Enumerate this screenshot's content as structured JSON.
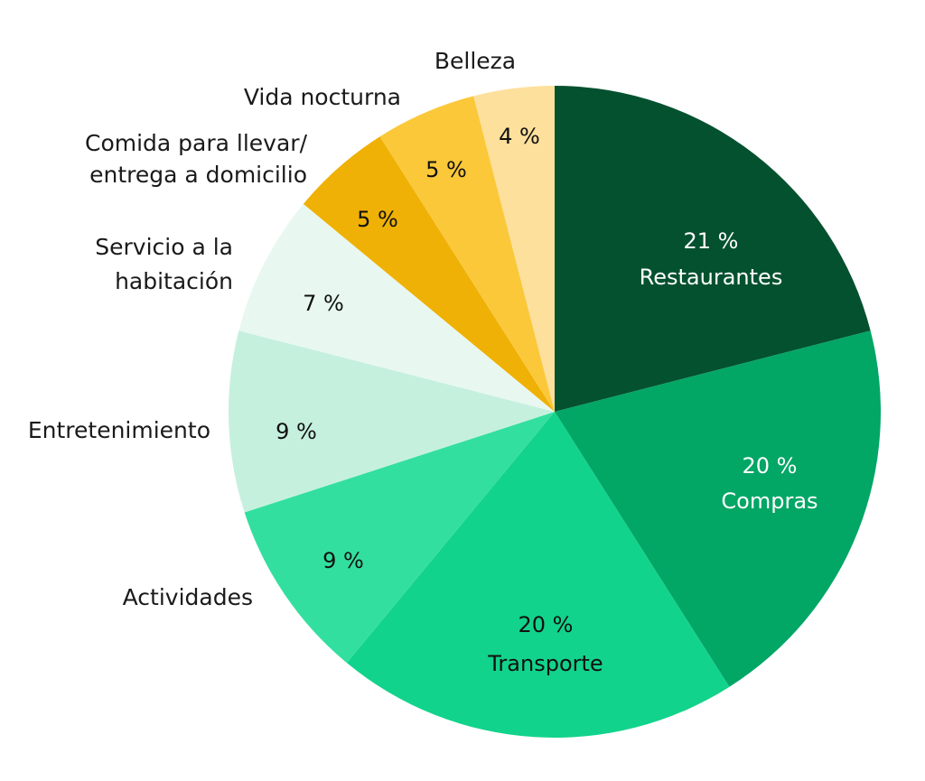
{
  "chart_data": {
    "type": "pie",
    "title": "",
    "slices": [
      {
        "category": "Restaurantes",
        "value": 21,
        "value_label": "21 %",
        "color": "#04512f",
        "text_color": "#ffffff",
        "label_position": "inside"
      },
      {
        "category": "Compras",
        "value": 20,
        "value_label": "20 %",
        "color": "#02a665",
        "text_color": "#ffffff",
        "label_position": "inside"
      },
      {
        "category": "Transporte",
        "value": 20,
        "value_label": "20 %",
        "color": "#12d38b",
        "text_color": "#111111",
        "label_position": "inside"
      },
      {
        "category": "Actividades",
        "value": 9,
        "value_label": "9 %",
        "color": "#33df9f",
        "text_color": "#111111",
        "label_position": "outside"
      },
      {
        "category": "Entretenimiento",
        "value": 9,
        "value_label": "9 %",
        "color": "#c6f0de",
        "text_color": "#111111",
        "label_position": "outside"
      },
      {
        "category": "Servicio a la habitación",
        "value": 7,
        "value_label": "7 %",
        "color": "#e8f8f1",
        "text_color": "#111111",
        "label_position": "outside"
      },
      {
        "category": "Comida para llevar/ entrega a domicilio",
        "value": 5,
        "value_label": "5 %",
        "color": "#efb106",
        "text_color": "#111111",
        "label_position": "outside"
      },
      {
        "category": "Vida nocturna",
        "value": 5,
        "value_label": "5 %",
        "color": "#fbc83a",
        "text_color": "#111111",
        "label_position": "outside"
      },
      {
        "category": "Belleza",
        "value": 4,
        "value_label": "4 %",
        "color": "#fde09c",
        "text_color": "#111111",
        "label_position": "outside"
      }
    ],
    "start_angle": "12 o'clock",
    "direction": "clockwise",
    "legend": "none"
  }
}
